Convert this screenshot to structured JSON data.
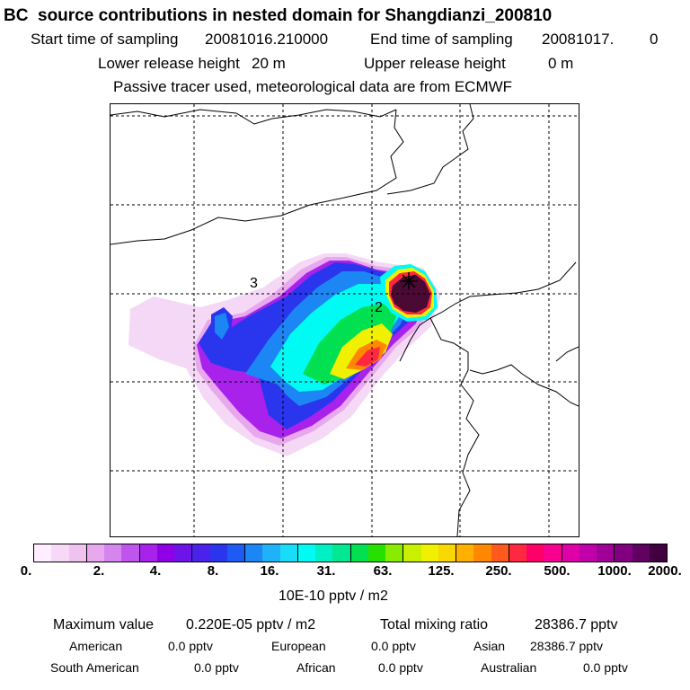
{
  "header": {
    "title": "BC  source contributions in nested domain for Shangdianzi_200810",
    "start_label": "Start time of sampling",
    "start_value": "20081016.210000",
    "end_label": "End time of sampling",
    "end_value": "20081017.",
    "end_extra": "0",
    "lower_label": "Lower release height",
    "lower_value": "20 m",
    "upper_label": "Upper release height",
    "upper_value": "0 m",
    "note": "Passive tracer used, meteorological data are from ECMWF"
  },
  "map": {
    "labels": [
      {
        "id": "label-3",
        "text": "3"
      },
      {
        "id": "label-2",
        "text": "2"
      }
    ],
    "receptor": "Shangdianzi",
    "max_color": "#4a0a33"
  },
  "colorbar": {
    "colors": [
      "#ffeeff",
      "#f7d9f7",
      "#efc2f0",
      "#e8a8ee",
      "#d585ee",
      "#bf55ec",
      "#a822ec",
      "#8f00e6",
      "#6e14e8",
      "#4b22ec",
      "#2a35ee",
      "#1d5bf2",
      "#1d86f5",
      "#20b2f8",
      "#18dcf8",
      "#00fbf4",
      "#00f0c4",
      "#00e890",
      "#00e050",
      "#28e000",
      "#88ec00",
      "#c8f000",
      "#f0f000",
      "#f8d800",
      "#ffb000",
      "#ff8800",
      "#ff5a1e",
      "#ff2840",
      "#ff0068",
      "#f80090",
      "#e000a8",
      "#c000a8",
      "#a00098",
      "#800080",
      "#600060",
      "#400040"
    ],
    "ticks": [
      "0.",
      "2.",
      "4.",
      "8.",
      "16.",
      "31.",
      "63.",
      "125.",
      "250.",
      "500.",
      "1000.",
      "2000."
    ],
    "units": "10E-10 pptv / m2"
  },
  "stats": {
    "max_label": "Maximum value",
    "max_value": "0.220E-05 pptv / m2",
    "total_label": "Total mixing ratio",
    "total_value": "28386.7 pptv",
    "regions": [
      {
        "name": "American",
        "value": "0.0 pptv"
      },
      {
        "name": "European",
        "value": "0.0 pptv"
      },
      {
        "name": "Asian",
        "value": "28386.7 pptv"
      },
      {
        "name": "South American",
        "value": "0.0 pptv"
      },
      {
        "name": "African",
        "value": "0.0 pptv"
      },
      {
        "name": "Australian",
        "value": "0.0 pptv"
      }
    ]
  }
}
